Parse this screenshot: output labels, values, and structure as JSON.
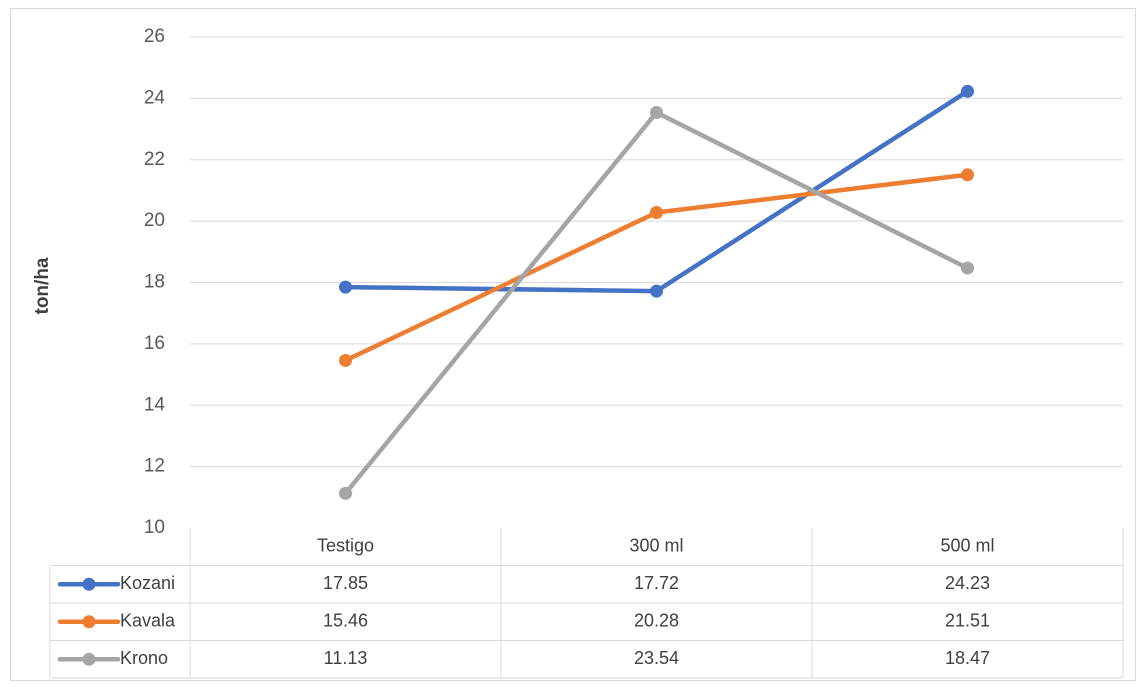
{
  "chart_data": {
    "type": "line",
    "ylabel": "ton/ha",
    "xlabel": "",
    "ylim": [
      10,
      26
    ],
    "y_ticks": [
      "10",
      "12",
      "14",
      "16",
      "18",
      "20",
      "22",
      "24",
      "26"
    ],
    "grid": true,
    "legend": "data-table",
    "categories": [
      "Testigo",
      "300 ml",
      "500 ml"
    ],
    "series": [
      {
        "name": "Kozani",
        "color": "#4472c4",
        "values": [
          17.85,
          17.72,
          24.23
        ],
        "labels": [
          "17.85",
          "17.72",
          "24.23"
        ]
      },
      {
        "name": "Kavala",
        "color": "#ed7d31",
        "values": [
          15.46,
          20.28,
          21.51
        ],
        "labels": [
          "15.46",
          "20.28",
          "21.51"
        ]
      },
      {
        "name": "Krono",
        "color": "#a5a5a5",
        "values": [
          11.13,
          23.54,
          18.47
        ],
        "labels": [
          "11.13",
          "23.54",
          "18.47"
        ]
      }
    ]
  }
}
